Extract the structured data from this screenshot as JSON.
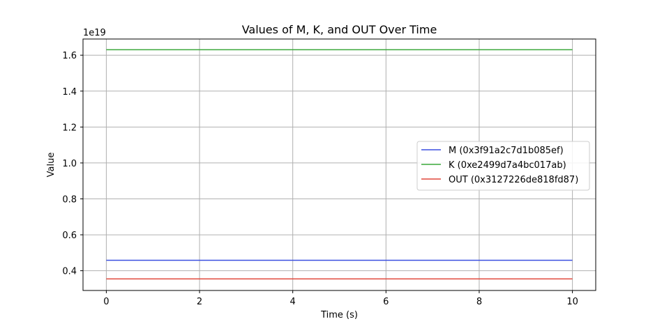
{
  "chart_data": {
    "type": "line",
    "title": "Values of M, K, and OUT Over Time",
    "xlabel": "Time (s)",
    "ylabel": "Value",
    "y_offset_label": "1e19",
    "xlim": [
      -0.5,
      10.5
    ],
    "ylim": [
      0.29,
      1.69
    ],
    "x_ticks": [
      0,
      2,
      4,
      6,
      8,
      10
    ],
    "x_tick_labels": [
      "0",
      "2",
      "4",
      "6",
      "8",
      "10"
    ],
    "y_ticks": [
      0.4,
      0.6,
      0.8,
      1.0,
      1.2,
      1.4,
      1.6
    ],
    "y_tick_labels": [
      "0.4",
      "0.6",
      "0.8",
      "1.0",
      "1.2",
      "1.4",
      "1.6"
    ],
    "y_unit_scale": 1e+19,
    "grid": true,
    "legend_position": "center-right",
    "x": [
      0,
      10
    ],
    "series": [
      {
        "name": "M (0x3f91a2c7d1b085ef)",
        "color": "#3b4fe0",
        "values": [
          0.458,
          0.458
        ]
      },
      {
        "name": "K (0xe2499d7a4bc017ab)",
        "color": "#3aa83a",
        "values": [
          1.6305,
          1.6305
        ]
      },
      {
        "name": "OUT (0x3127226de818fd87)",
        "color": "#e0473a",
        "values": [
          0.3544,
          0.3544
        ]
      }
    ]
  }
}
